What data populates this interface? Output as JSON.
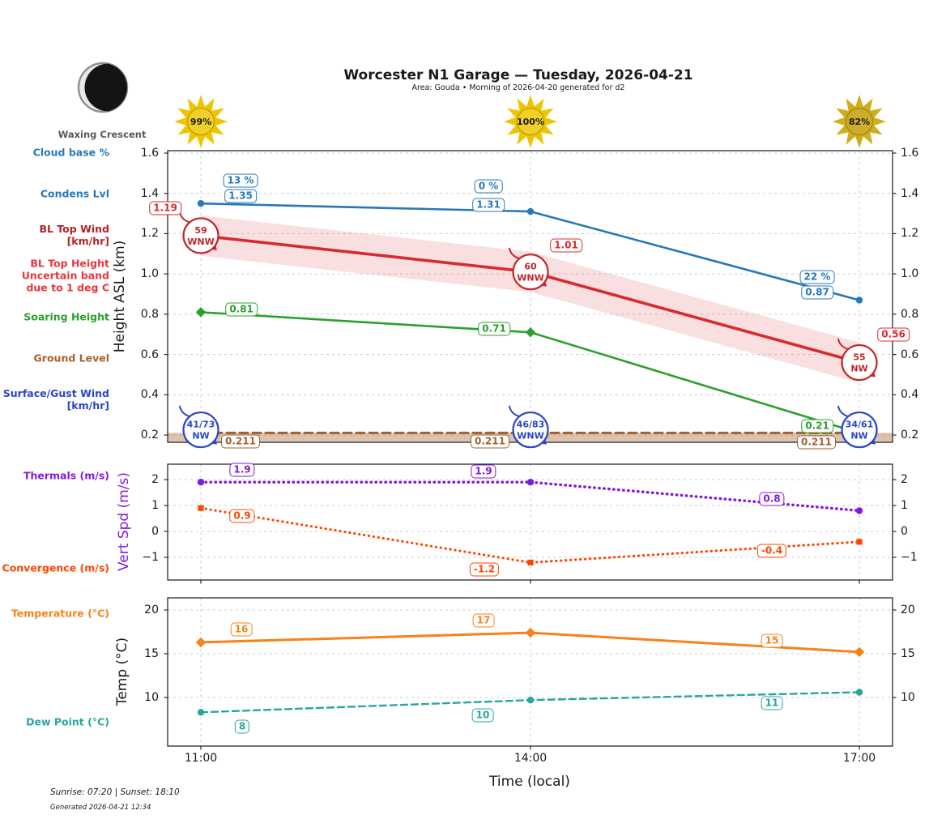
{
  "header": {
    "title": "Worcester N1 Garage — Tuesday, 2026-04-21",
    "subtitle": "Area: Gouda • Morning of 2026-04-20 generated for d2",
    "moon_phase": "Waxing Crescent"
  },
  "suns": [
    {
      "time": "11:00",
      "pct": "99%",
      "star": "#efc400",
      "core": "#efd028",
      "ring": "#c8a300"
    },
    {
      "time": "14:00",
      "pct": "100%",
      "star": "#efc400",
      "core": "#efd028",
      "ring": "#c8a300"
    },
    {
      "time": "17:00",
      "pct": "82%",
      "star": "#cfae1c",
      "core": "#ccad2e",
      "ring": "#a68d12"
    }
  ],
  "xaxis": {
    "label": "Time (local)",
    "ticks": [
      "11:00",
      "14:00",
      "17:00"
    ]
  },
  "legend": {
    "chart1": [
      {
        "label": "Cloud base %",
        "color": "#2878b8"
      },
      {
        "label": "Condens Lvl",
        "color": "#2878b8"
      },
      {
        "label": "BL Top Wind\n[km/hr]",
        "color": "#b22225"
      },
      {
        "label": "BL Top Height\nUncertain band\ndue to 1 deg C",
        "color": "#e8373c"
      },
      {
        "label": "Soaring Height",
        "color": "#2ca02c"
      },
      {
        "label": "Ground Level",
        "color": "#a2612f"
      },
      {
        "label": "Surface/Gust Wind\n[km/hr]",
        "color": "#2a46c8"
      }
    ],
    "chart2": [
      {
        "label": "Thermals (m/s)",
        "color": "#8318e0"
      },
      {
        "label": "Convergence (m/s)",
        "color": "#ff4500"
      }
    ],
    "chart3": [
      {
        "label": "Temperature (°C)",
        "color": "#f78219"
      },
      {
        "label": "Dew Point (°C)",
        "color": "#27a69e"
      }
    ]
  },
  "chart_data": [
    {
      "type": "line",
      "ylabel": "Height ASL (km)",
      "ylabel_color": "#1a1a1a",
      "x": [
        "11:00",
        "14:00",
        "17:00"
      ],
      "ylim": [
        0.164,
        1.612
      ],
      "grid": true,
      "yticks": [
        0.2,
        0.4,
        0.6,
        0.8,
        1.0,
        1.2,
        1.4,
        1.6
      ],
      "ytick_labels": [
        "0.2",
        "0.4",
        "0.6",
        "0.8",
        "1.0",
        "1.2",
        "1.4",
        "1.6"
      ],
      "series": [
        {
          "name": "Condens Lvl",
          "color": "#2878b8",
          "line": "solid",
          "marker": "circle",
          "values": [
            1.35,
            1.31,
            0.87
          ],
          "labels": [
            "1.35",
            "1.31",
            "0.87"
          ]
        },
        {
          "name": "Cloud base %",
          "color": "#2878b8",
          "line": "none",
          "marker": "none",
          "values": [],
          "labels": [
            "13 %",
            "0 %",
            "22 %"
          ]
        },
        {
          "name": "BL Top Height",
          "color": "#d62b30",
          "line": "solid",
          "marker": "none",
          "band": 0.1,
          "band_note": "Uncertain band due to 1 deg C",
          "values": [
            1.19,
            1.01,
            0.56
          ],
          "labels": [
            "1.19",
            "1.01",
            "0.56"
          ]
        },
        {
          "name": "BL Top Wind [km/hr]",
          "color": "#c0272b",
          "role": "wind",
          "speeds": [
            "59",
            "60",
            "55"
          ],
          "dirs": [
            "WNW",
            "WNW",
            "NW"
          ]
        },
        {
          "name": "Soaring Height",
          "color": "#2ca02c",
          "line": "solid",
          "marker": "diamond",
          "values": [
            0.81,
            0.71,
            0.21
          ],
          "labels": [
            "0.81",
            "0.71",
            "0.21"
          ]
        },
        {
          "name": "Ground Level",
          "color": "#a2612f",
          "line": "dashed",
          "marker": "none",
          "fill_below": true,
          "values": [
            0.211,
            0.211,
            0.211
          ],
          "labels": [
            "0.211",
            "0.211",
            "0.211"
          ]
        },
        {
          "name": "Surface/Gust Wind [km/hr]",
          "color": "#2a46c8",
          "role": "wind",
          "speeds": [
            "41/73",
            "46/83",
            "34/61"
          ],
          "dirs": [
            "NW",
            "WNW",
            "NW"
          ]
        }
      ]
    },
    {
      "type": "line",
      "ylabel": "Vert Spd (m/s)",
      "ylabel_color": "#8318e0",
      "x": [
        "11:00",
        "14:00",
        "17:00"
      ],
      "ylim": [
        -1.875,
        2.594
      ],
      "grid": true,
      "yticks": [
        2,
        1,
        0,
        -1
      ],
      "ytick_labels": [
        "2",
        "1",
        "0",
        "−1"
      ],
      "series": [
        {
          "name": "Thermals (m/s)",
          "color": "#8318e0",
          "line": "dotted",
          "marker": "circle",
          "values": [
            1.9,
            1.9,
            0.8
          ],
          "labels": [
            "1.9",
            "1.9",
            "0.8"
          ]
        },
        {
          "name": "Convergence (m/s)",
          "color": "#ff4500",
          "line": "dotted",
          "marker": "square",
          "values": [
            0.9,
            -1.2,
            -0.4
          ],
          "labels": [
            "0.9",
            "-1.2",
            "-0.4"
          ]
        }
      ]
    },
    {
      "type": "line",
      "ylabel": "Temp (°C)",
      "ylabel_color": "#1a1a1a",
      "x": [
        "11:00",
        "14:00",
        "17:00"
      ],
      "ylim": [
        4.44,
        21.39
      ],
      "grid": true,
      "yticks": [
        20,
        15,
        10
      ],
      "ytick_labels": [
        "20",
        "15",
        "10"
      ],
      "series": [
        {
          "name": "Temperature (°C)",
          "color": "#f78219",
          "line": "solid",
          "marker": "diamond",
          "values": [
            16.3,
            17.4,
            15.2
          ],
          "labels": [
            "16",
            "17",
            "15"
          ]
        },
        {
          "name": "Dew Point (°C)",
          "color": "#27a69e",
          "line": "dashed2",
          "marker": "circle",
          "values": [
            8.3,
            9.7,
            10.6
          ],
          "labels": [
            "8",
            "10",
            "11"
          ]
        }
      ]
    }
  ],
  "footer": {
    "sun_times": "Sunrise: 07:20 | Sunset: 18:10",
    "generated": "Generated 2026-04-21 12:34"
  }
}
